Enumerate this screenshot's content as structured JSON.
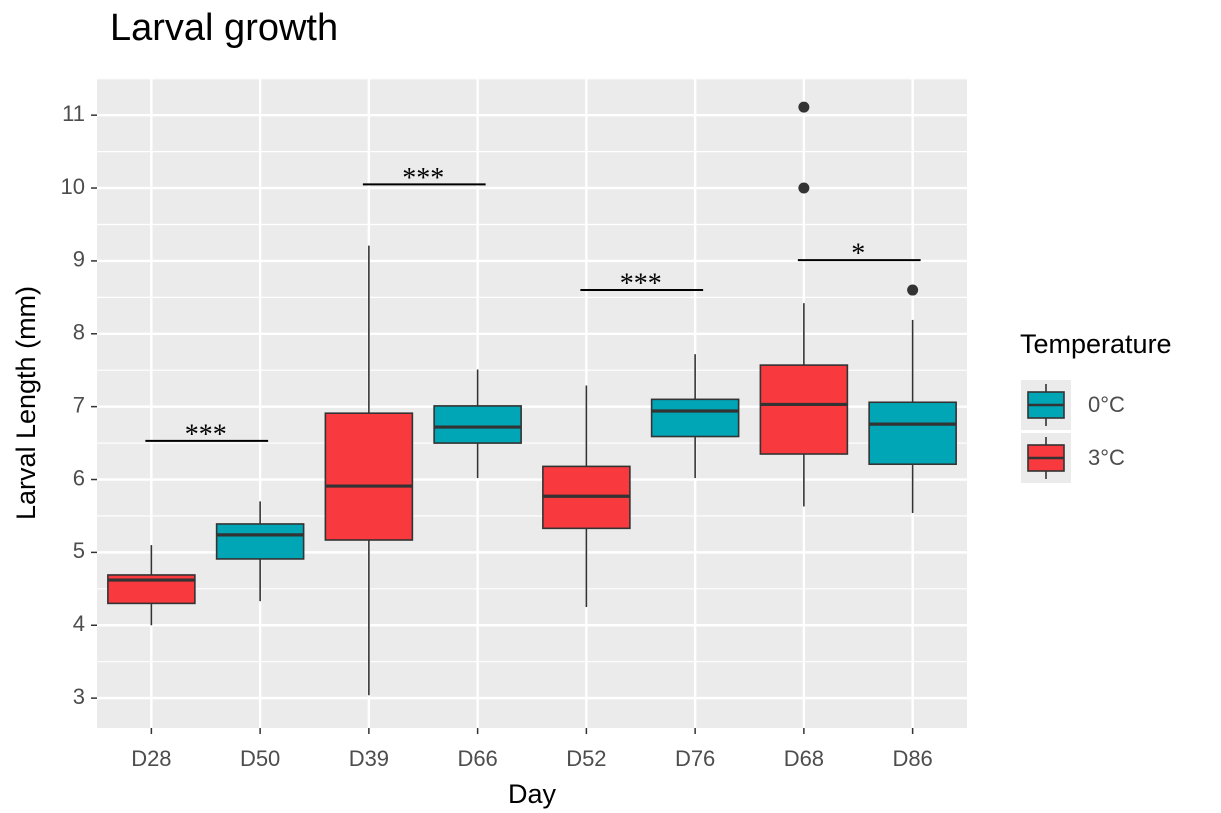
{
  "chart_data": {
    "type": "box",
    "title": "Larval growth",
    "x_label": "Day",
    "y_label": "Larval Length (mm)",
    "legend_title": "Temperature",
    "legend_position": "right",
    "grid": true,
    "categories": [
      "D28",
      "D50",
      "D39",
      "D66",
      "D52",
      "D76",
      "D68",
      "D86"
    ],
    "ylim": [
      2.59,
      11.51
    ],
    "yticks": [
      3,
      4,
      5,
      6,
      7,
      8,
      9,
      10,
      11
    ],
    "series": [
      {
        "name": "0°C",
        "color": "#00a6b6",
        "values": [
          null,
          {
            "low": 4.33,
            "q1": 4.91,
            "median": 5.24,
            "q3": 5.39,
            "high": 5.7,
            "outliers": []
          },
          null,
          {
            "low": 6.02,
            "q1": 6.5,
            "median": 6.72,
            "q3": 7.01,
            "high": 7.51,
            "outliers": []
          },
          null,
          {
            "low": 6.02,
            "q1": 6.59,
            "median": 6.94,
            "q3": 7.1,
            "high": 7.72,
            "outliers": []
          },
          null,
          {
            "low": 5.54,
            "q1": 6.21,
            "median": 6.76,
            "q3": 7.06,
            "high": 8.19,
            "outliers": [
              8.6
            ]
          }
        ]
      },
      {
        "name": "3°C",
        "color": "#f8393e",
        "values": [
          {
            "low": 4.0,
            "q1": 4.3,
            "median": 4.62,
            "q3": 4.69,
            "high": 5.1,
            "outliers": []
          },
          null,
          {
            "low": 3.04,
            "q1": 5.17,
            "median": 5.91,
            "q3": 6.91,
            "high": 9.21,
            "outliers": []
          },
          null,
          {
            "low": 4.25,
            "q1": 5.33,
            "median": 5.77,
            "q3": 6.18,
            "high": 7.29,
            "outliers": []
          },
          null,
          {
            "low": 5.63,
            "q1": 6.35,
            "median": 7.03,
            "q3": 7.57,
            "high": 8.42,
            "outliers": [
              10.0,
              11.11
            ]
          },
          null
        ]
      }
    ],
    "annotations": [
      {
        "text": "***",
        "from": 0,
        "to": 1,
        "y": 6.53
      },
      {
        "text": "***",
        "from": 2,
        "to": 3,
        "y": 10.05
      },
      {
        "text": "***",
        "from": 4,
        "to": 5,
        "y": 8.6
      },
      {
        "text": "*",
        "from": 6,
        "to": 7,
        "y": 9.01
      }
    ]
  }
}
